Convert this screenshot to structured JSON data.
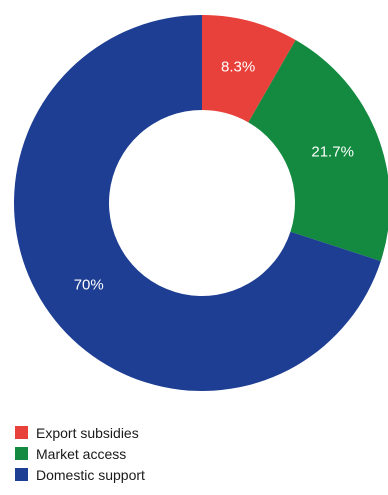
{
  "chart_data": {
    "type": "pie",
    "variant": "donut",
    "title": "",
    "slices": [
      {
        "label": "Export subsidies",
        "value": 8.3,
        "display": "8.3%",
        "color": "#e8403a"
      },
      {
        "label": "Market access",
        "value": 21.7,
        "display": "21.7%",
        "color": "#138a3f"
      },
      {
        "label": "Domestic support",
        "value": 70,
        "display": "70%",
        "color": "#1d3e93"
      }
    ],
    "legend_position": "bottom-left",
    "start_angle": "12 o'clock",
    "direction": "clockwise"
  }
}
